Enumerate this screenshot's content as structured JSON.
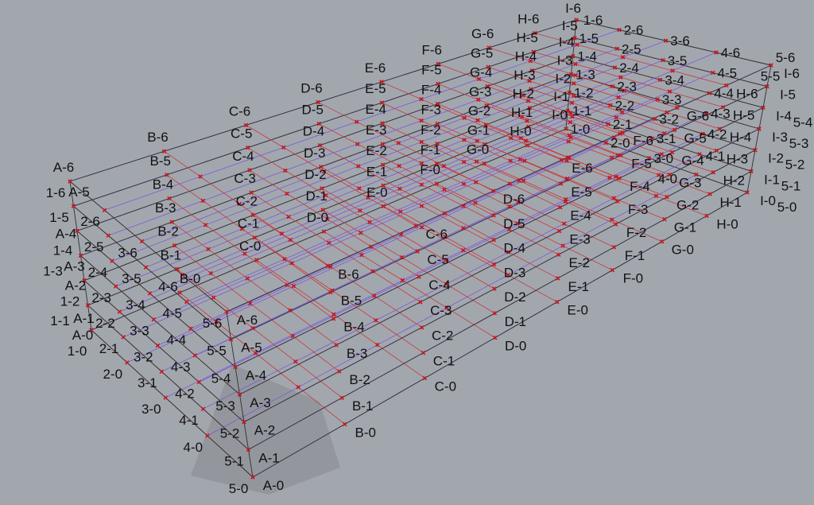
{
  "viewport": {
    "background_color": "#a2a7ae",
    "letter_line_color": "#c8393b",
    "number_line_color": "#7b5ad6",
    "edge_line_color": "#2f2f2f",
    "node_marker_color": "#c4161c",
    "label_separator": "-"
  },
  "grid": {
    "letter_axes": [
      "A",
      "B",
      "C",
      "D",
      "E",
      "F",
      "G",
      "H",
      "I"
    ],
    "number_axes": [
      "1",
      "2",
      "3",
      "4",
      "5"
    ],
    "levels": [
      "0",
      "1",
      "2",
      "3",
      "4",
      "5",
      "6"
    ]
  }
}
